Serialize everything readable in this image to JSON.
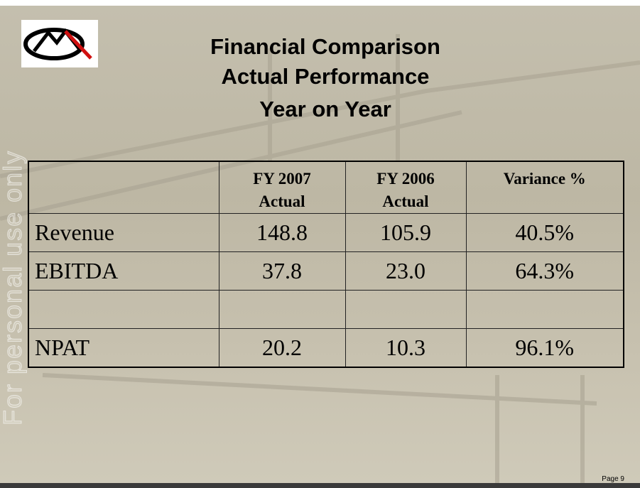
{
  "header": {
    "title_lines": [
      "Financial Comparison",
      "Actual Performance",
      "Year on Year"
    ]
  },
  "table": {
    "columns": [
      [
        "FY 2007",
        "Actual"
      ],
      [
        "FY 2006",
        "Actual"
      ],
      [
        "Variance %"
      ]
    ],
    "rows": [
      [
        "Revenue",
        "148.8",
        "105.9",
        "40.5%"
      ],
      [
        "EBITDA",
        "37.8",
        "23.0",
        "64.3%"
      ],
      [
        "NPAT",
        "20.2",
        "10.3",
        "96.1%"
      ]
    ]
  },
  "watermark": "For personal use only",
  "footer": {
    "page": "Page 9"
  }
}
